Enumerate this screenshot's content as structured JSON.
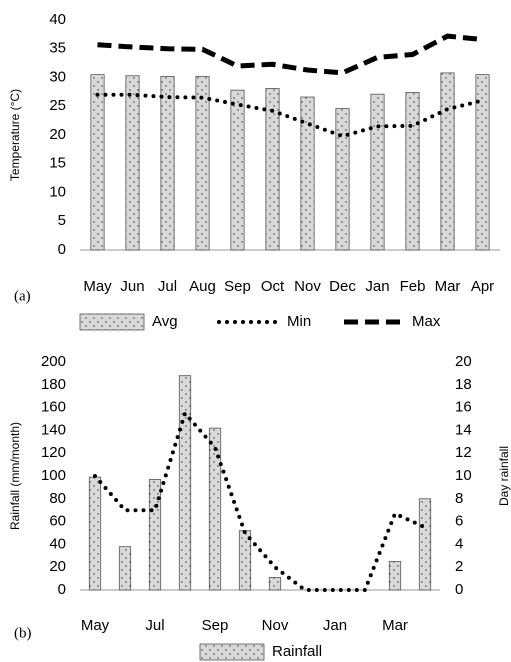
{
  "chart_data": [
    {
      "type": "combo",
      "annotation": "(a)",
      "y_label": "Temperature (°C)",
      "categories": [
        "May",
        "Jun",
        "Jul",
        "Aug",
        "Sep",
        "Oct",
        "Nov",
        "Dec",
        "Jan",
        "Feb",
        "Mar",
        "Apr"
      ],
      "ylim": [
        0,
        40
      ],
      "yticks": [
        0,
        5,
        10,
        15,
        20,
        25,
        30,
        35,
        40
      ],
      "grid": false,
      "series": [
        {
          "name": "Avg",
          "type": "bar",
          "color": "#d9d9d9",
          "values": [
            30.5,
            30.3,
            30.2,
            30.2,
            27.8,
            28.1,
            26.6,
            24.6,
            27.1,
            27.4,
            30.8,
            30.5
          ]
        },
        {
          "name": "Min",
          "type": "line",
          "line_style": "dotted",
          "color": "#000000",
          "values": [
            27,
            27,
            26.6,
            26.5,
            25.3,
            24.2,
            22,
            19.8,
            21.5,
            21.6,
            24.5,
            26
          ]
        },
        {
          "name": "Max",
          "type": "line",
          "line_style": "dashed",
          "color": "#000000",
          "values": [
            35.7,
            35.3,
            35,
            34.9,
            32,
            32.3,
            31.3,
            30.8,
            33.5,
            34,
            37.2,
            36.6
          ]
        }
      ]
    },
    {
      "type": "combo",
      "annotation": "(b)",
      "y_label": "Rainfall (mm/month)",
      "y2_label": "Day rainfall",
      "categories": [
        "May",
        null,
        "Jul",
        null,
        "Sep",
        null,
        "Nov",
        null,
        "Jan",
        null,
        "Mar",
        null
      ],
      "ylim": [
        0,
        200
      ],
      "yticks": [
        0,
        20,
        40,
        60,
        80,
        100,
        120,
        140,
        160,
        180,
        200
      ],
      "y2lim": [
        0,
        20
      ],
      "y2ticks": [
        0,
        2,
        4,
        6,
        8,
        10,
        12,
        14,
        16,
        18,
        20
      ],
      "grid": false,
      "series": [
        {
          "name": "Rainfall",
          "type": "bar",
          "color": "#d9d9d9",
          "values": [
            99,
            38,
            97,
            188,
            142,
            52,
            11,
            0,
            0,
            0,
            25,
            80
          ]
        },
        {
          "type": "line",
          "axis": "y2",
          "line_style": "dotted",
          "color": "#000000",
          "values": [
            10,
            7,
            7,
            15.5,
            12.5,
            5,
            2,
            0,
            0,
            0,
            6.7,
            5.5
          ]
        }
      ]
    }
  ]
}
